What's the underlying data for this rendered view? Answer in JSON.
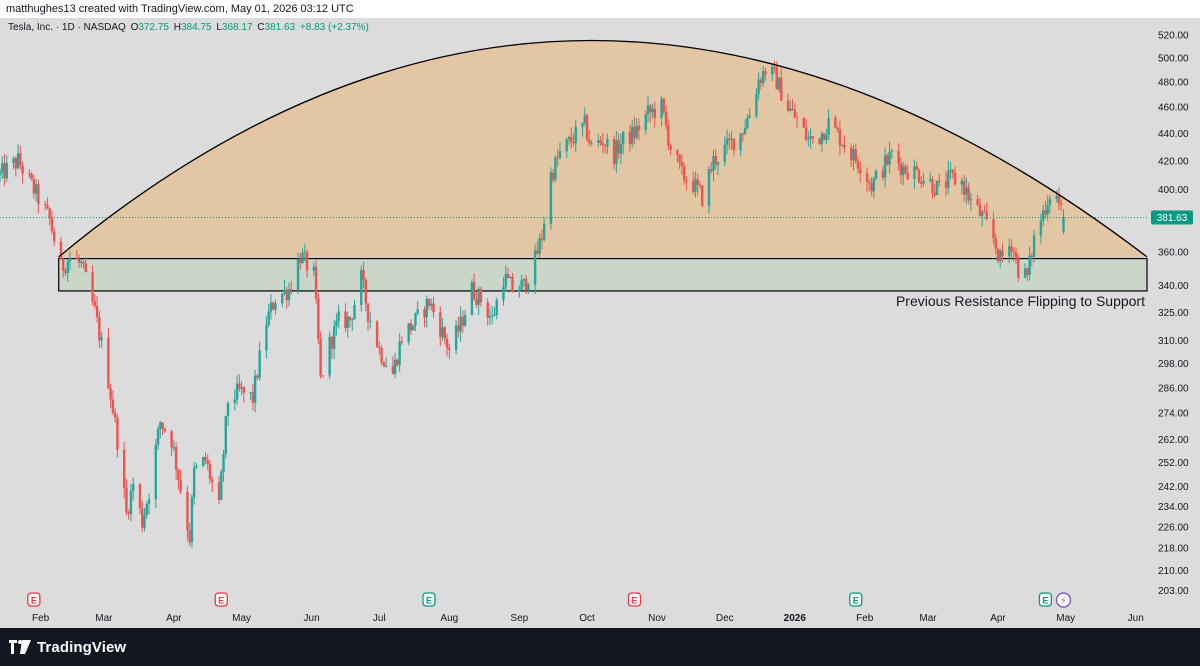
{
  "header": {
    "credit": "matthughes13 created with TradingView.com, May 01, 2026 03:12 UTC"
  },
  "legend": {
    "symbol": "Tesla, Inc. · 1D · NASDAQ",
    "o_label": "O",
    "o_value": "372.75",
    "h_label": "H",
    "h_value": "384.75",
    "l_label": "L",
    "l_value": "368.17",
    "c_label": "C",
    "c_value": "381.63",
    "change": "+8.83 (+2.37%)"
  },
  "footer": {
    "brand": "TradingView"
  },
  "colors": {
    "up": "#26a69a",
    "down": "#ef5350",
    "dome_fill": "#e3c6a4",
    "zone_fill": "#c9d6c8",
    "price_label_bg": "#089981",
    "earnings_red": "#f23645",
    "earnings_green": "#089981",
    "background": "#dcdcdc",
    "axis_text": "#131722"
  },
  "chart_data": {
    "type": "candlestick",
    "title": "Tesla, Inc. · 1D · NASDAQ",
    "y_scale": "log",
    "y_ticks": [
      520.0,
      500.0,
      480.0,
      460.0,
      440.0,
      420.0,
      400.0,
      380.0,
      360.0,
      340.0,
      325.0,
      310.0,
      298.0,
      286.0,
      274.0,
      262.0,
      252.0,
      242.0,
      234.0,
      226.0,
      218.0,
      210.0,
      203.0
    ],
    "y_tick_labels": [
      "520.00",
      "500.00",
      "480.00",
      "460.00",
      "440.00",
      "420.00",
      "400.00",
      "",
      "360.00",
      "340.00",
      "325.00",
      "310.00",
      "298.00",
      "286.00",
      "274.00",
      "262.00",
      "252.00",
      "242.00",
      "234.00",
      "226.00",
      "218.00",
      "210.00",
      "203.00"
    ],
    "ylim": [
      197,
      535
    ],
    "x_range": [
      "2025-01-14",
      "2026-06-06"
    ],
    "x_ticks": [
      {
        "date": "2025-02-01",
        "label": "Feb",
        "bold": false
      },
      {
        "date": "2025-03-01",
        "label": "Mar",
        "bold": false
      },
      {
        "date": "2025-04-01",
        "label": "Apr",
        "bold": false
      },
      {
        "date": "2025-05-01",
        "label": "May",
        "bold": false
      },
      {
        "date": "2025-06-01",
        "label": "Jun",
        "bold": false
      },
      {
        "date": "2025-07-01",
        "label": "Jul",
        "bold": false
      },
      {
        "date": "2025-08-01",
        "label": "Aug",
        "bold": false
      },
      {
        "date": "2025-09-01",
        "label": "Sep",
        "bold": false
      },
      {
        "date": "2025-10-01",
        "label": "Oct",
        "bold": false
      },
      {
        "date": "2025-11-01",
        "label": "Nov",
        "bold": false
      },
      {
        "date": "2025-12-01",
        "label": "Dec",
        "bold": false
      },
      {
        "date": "2026-01-01",
        "label": "2026",
        "bold": true
      },
      {
        "date": "2026-02-01",
        "label": "Feb",
        "bold": false
      },
      {
        "date": "2026-03-01",
        "label": "Mar",
        "bold": false
      },
      {
        "date": "2026-04-01",
        "label": "Apr",
        "bold": false
      },
      {
        "date": "2026-05-01",
        "label": "May",
        "bold": false
      },
      {
        "date": "2026-06-01",
        "label": "Jun",
        "bold": false
      }
    ],
    "last_price": 381.63,
    "last_price_label": "381.63",
    "price_path": [
      [
        "2025-01-14",
        410
      ],
      [
        "2025-01-22",
        420
      ],
      [
        "2025-01-29",
        400
      ],
      [
        "2025-02-05",
        380
      ],
      [
        "2025-02-10",
        350
      ],
      [
        "2025-02-14",
        357
      ],
      [
        "2025-02-19",
        352
      ],
      [
        "2025-02-25",
        325
      ],
      [
        "2025-03-03",
        290
      ],
      [
        "2025-03-07",
        262
      ],
      [
        "2025-03-11",
        231
      ],
      [
        "2025-03-14",
        243
      ],
      [
        "2025-03-18",
        228
      ],
      [
        "2025-03-21",
        240
      ],
      [
        "2025-03-26",
        270
      ],
      [
        "2025-03-31",
        262
      ],
      [
        "2025-04-04",
        241
      ],
      [
        "2025-04-08",
        222
      ],
      [
        "2025-04-10",
        248
      ],
      [
        "2025-04-15",
        253
      ],
      [
        "2025-04-21",
        233
      ],
      [
        "2025-04-25",
        280
      ],
      [
        "2025-04-30",
        284
      ],
      [
        "2025-05-06",
        281
      ],
      [
        "2025-05-12",
        320
      ],
      [
        "2025-05-16",
        333
      ],
      [
        "2025-05-22",
        338
      ],
      [
        "2025-05-27",
        358
      ],
      [
        "2025-06-02",
        346
      ],
      [
        "2025-06-05",
        290
      ],
      [
        "2025-06-09",
        308
      ],
      [
        "2025-06-13",
        320
      ],
      [
        "2025-06-18",
        321
      ],
      [
        "2025-06-23",
        344
      ],
      [
        "2025-06-26",
        325
      ],
      [
        "2025-07-01",
        305
      ],
      [
        "2025-07-07",
        293
      ],
      [
        "2025-07-11",
        312
      ],
      [
        "2025-07-17",
        320
      ],
      [
        "2025-07-23",
        331
      ],
      [
        "2025-07-28",
        317
      ],
      [
        "2025-08-01",
        305
      ],
      [
        "2025-08-06",
        318
      ],
      [
        "2025-08-11",
        338
      ],
      [
        "2025-08-15",
        332
      ],
      [
        "2025-08-20",
        321
      ],
      [
        "2025-08-25",
        345
      ],
      [
        "2025-08-29",
        338
      ],
      [
        "2025-09-03",
        340
      ],
      [
        "2025-09-08",
        355
      ],
      [
        "2025-09-11",
        370
      ],
      [
        "2025-09-15",
        410
      ],
      [
        "2025-09-19",
        425
      ],
      [
        "2025-09-25",
        437
      ],
      [
        "2025-09-30",
        446
      ],
      [
        "2025-10-03",
        430
      ],
      [
        "2025-10-08",
        435
      ],
      [
        "2025-10-13",
        425
      ],
      [
        "2025-10-17",
        435
      ],
      [
        "2025-10-22",
        440
      ],
      [
        "2025-10-28",
        455
      ],
      [
        "2025-11-03",
        460
      ],
      [
        "2025-11-07",
        430
      ],
      [
        "2025-11-12",
        410
      ],
      [
        "2025-11-17",
        404
      ],
      [
        "2025-11-21",
        395
      ],
      [
        "2025-11-26",
        420
      ],
      [
        "2025-12-02",
        430
      ],
      [
        "2025-12-08",
        440
      ],
      [
        "2025-12-12",
        455
      ],
      [
        "2025-12-16",
        482
      ],
      [
        "2025-12-19",
        490
      ],
      [
        "2025-12-23",
        485
      ],
      [
        "2025-12-29",
        460
      ],
      [
        "2026-01-02",
        450
      ],
      [
        "2026-01-07",
        435
      ],
      [
        "2026-01-12",
        438
      ],
      [
        "2026-01-16",
        448
      ],
      [
        "2026-01-22",
        435
      ],
      [
        "2026-01-26",
        425
      ],
      [
        "2026-01-30",
        418
      ],
      [
        "2026-02-04",
        403
      ],
      [
        "2026-02-09",
        415
      ],
      [
        "2026-02-13",
        425
      ],
      [
        "2026-02-18",
        415
      ],
      [
        "2026-02-24",
        412
      ],
      [
        "2026-03-02",
        405
      ],
      [
        "2026-03-06",
        400
      ],
      [
        "2026-03-11",
        408
      ],
      [
        "2026-03-16",
        405
      ],
      [
        "2026-03-20",
        392
      ],
      [
        "2026-03-25",
        382
      ],
      [
        "2026-03-30",
        368
      ],
      [
        "2026-04-02",
        355
      ],
      [
        "2026-04-07",
        366
      ],
      [
        "2026-04-10",
        350
      ],
      [
        "2026-04-14",
        345
      ],
      [
        "2026-04-17",
        368
      ],
      [
        "2026-04-21",
        385
      ],
      [
        "2026-04-24",
        398
      ],
      [
        "2026-04-27",
        395
      ],
      [
        "2026-04-30",
        381.63
      ]
    ],
    "annotations": {
      "dome_arc": {
        "start": [
          "2025-02-09",
          357
        ],
        "peak": [
          "2025-10-03",
          515
        ],
        "end": [
          "2026-06-06",
          357
        ]
      },
      "support_zone": {
        "from": "2025-02-09",
        "to": "2026-06-06",
        "low": 337,
        "high": 356
      },
      "zone_label": "Previous Resistance Flipping to Support",
      "markers": [
        {
          "date": "2025-01-29",
          "text": "E",
          "kind": "red"
        },
        {
          "date": "2025-04-22",
          "text": "E",
          "kind": "red"
        },
        {
          "date": "2025-07-23",
          "text": "E",
          "kind": "green"
        },
        {
          "date": "2025-10-22",
          "text": "E",
          "kind": "red"
        },
        {
          "date": "2026-01-28",
          "text": "E",
          "kind": "green"
        },
        {
          "date": "2026-04-22",
          "text": "E",
          "kind": "green"
        },
        {
          "date": "2026-04-30",
          "text": "⚡",
          "kind": "purple"
        }
      ]
    }
  }
}
